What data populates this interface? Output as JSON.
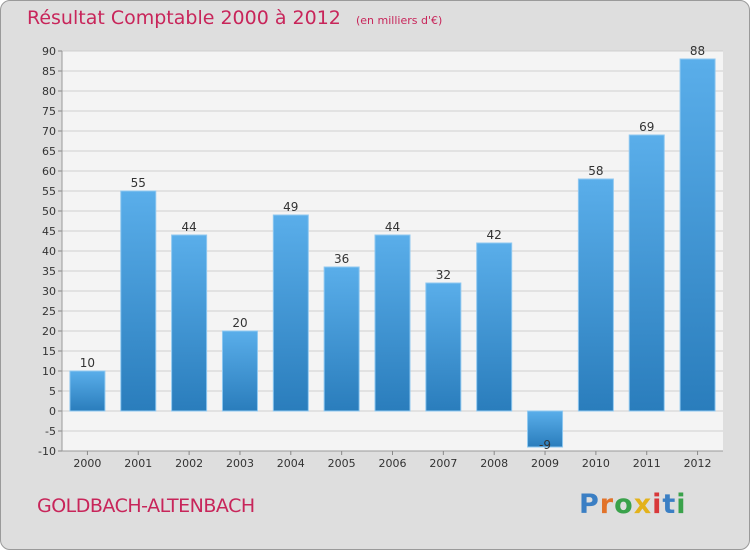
{
  "header": {
    "title": "Résultat Comptable 2000 à 2012",
    "unit": "(en milliers d'€)"
  },
  "footer": {
    "commune": "GOLDBACH-ALTENBACH",
    "logo_letters": [
      "P",
      "r",
      "o",
      "x",
      "i",
      "t",
      "i"
    ]
  },
  "colors": {
    "bar_top": "#5aaeea",
    "bar_bottom": "#2a7dbc",
    "title": "#c8255a",
    "plot_bg": "#f4f4f4"
  },
  "chart_data": {
    "type": "bar",
    "title": "Résultat Comptable 2000 à 2012",
    "subtitle": "(en milliers d'€)",
    "categories": [
      "2000",
      "2001",
      "2002",
      "2003",
      "2004",
      "2005",
      "2006",
      "2007",
      "2008",
      "2009",
      "2010",
      "2011",
      "2012"
    ],
    "values": [
      10,
      55,
      44,
      20,
      49,
      36,
      44,
      32,
      42,
      -9,
      58,
      69,
      88
    ],
    "data_labels": [
      "10",
      "55",
      "44",
      "20",
      "49",
      "36",
      "44",
      "32",
      "42",
      "-9",
      "58",
      "69",
      "88"
    ],
    "xlabel": "",
    "ylabel": "",
    "ylim": [
      -10,
      90
    ],
    "yticks": [
      -10,
      -5,
      0,
      5,
      10,
      15,
      20,
      25,
      30,
      35,
      40,
      45,
      50,
      55,
      60,
      65,
      70,
      75,
      80,
      85,
      90
    ],
    "grid": true
  }
}
